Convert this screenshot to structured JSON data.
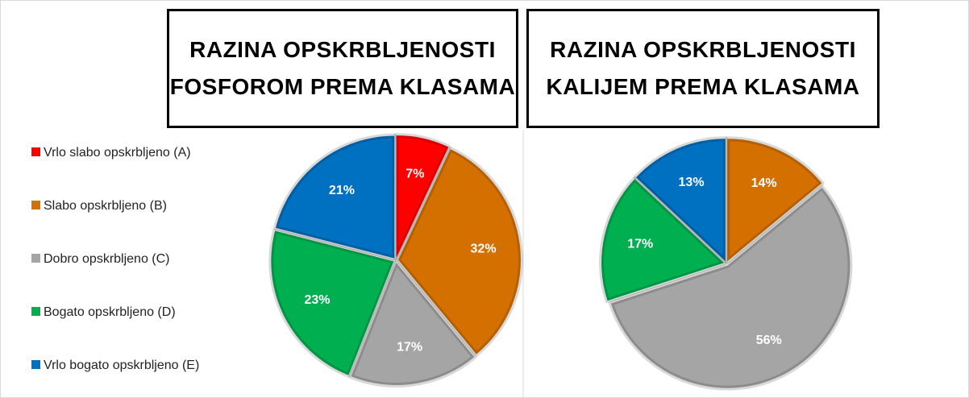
{
  "chart_data": [
    {
      "type": "pie",
      "title": "RAZINA OPSKRBLJENOSTI FOSFOROM PREMA KLASAMA",
      "categories": [
        "Vrlo slabo opskrbljeno (A)",
        "Slabo opskrbljeno (B)",
        "Dobro opskrbljeno (C)",
        "Bogato opskrbljeno (D)",
        "Vrlo bogato opskrbljeno (E)"
      ],
      "values": [
        7,
        32,
        17,
        23,
        21
      ],
      "value_labels": [
        "7%",
        "32%",
        "17%",
        "23%",
        "21%"
      ],
      "colors": [
        "#ff0000",
        "#d47000",
        "#a5a5a5",
        "#00b050",
        "#0070c0"
      ],
      "legend": "left"
    },
    {
      "type": "pie",
      "title": "RAZINA OPSKRBLJENOSTI KALIJEM PREMA KLASAMA",
      "values": [
        14,
        56,
        17,
        13
      ],
      "value_labels": [
        "14%",
        "56%",
        "17%",
        "13%"
      ],
      "colors": [
        "#d47000",
        "#a5a5a5",
        "#00b050",
        "#0070c0"
      ]
    }
  ]
}
